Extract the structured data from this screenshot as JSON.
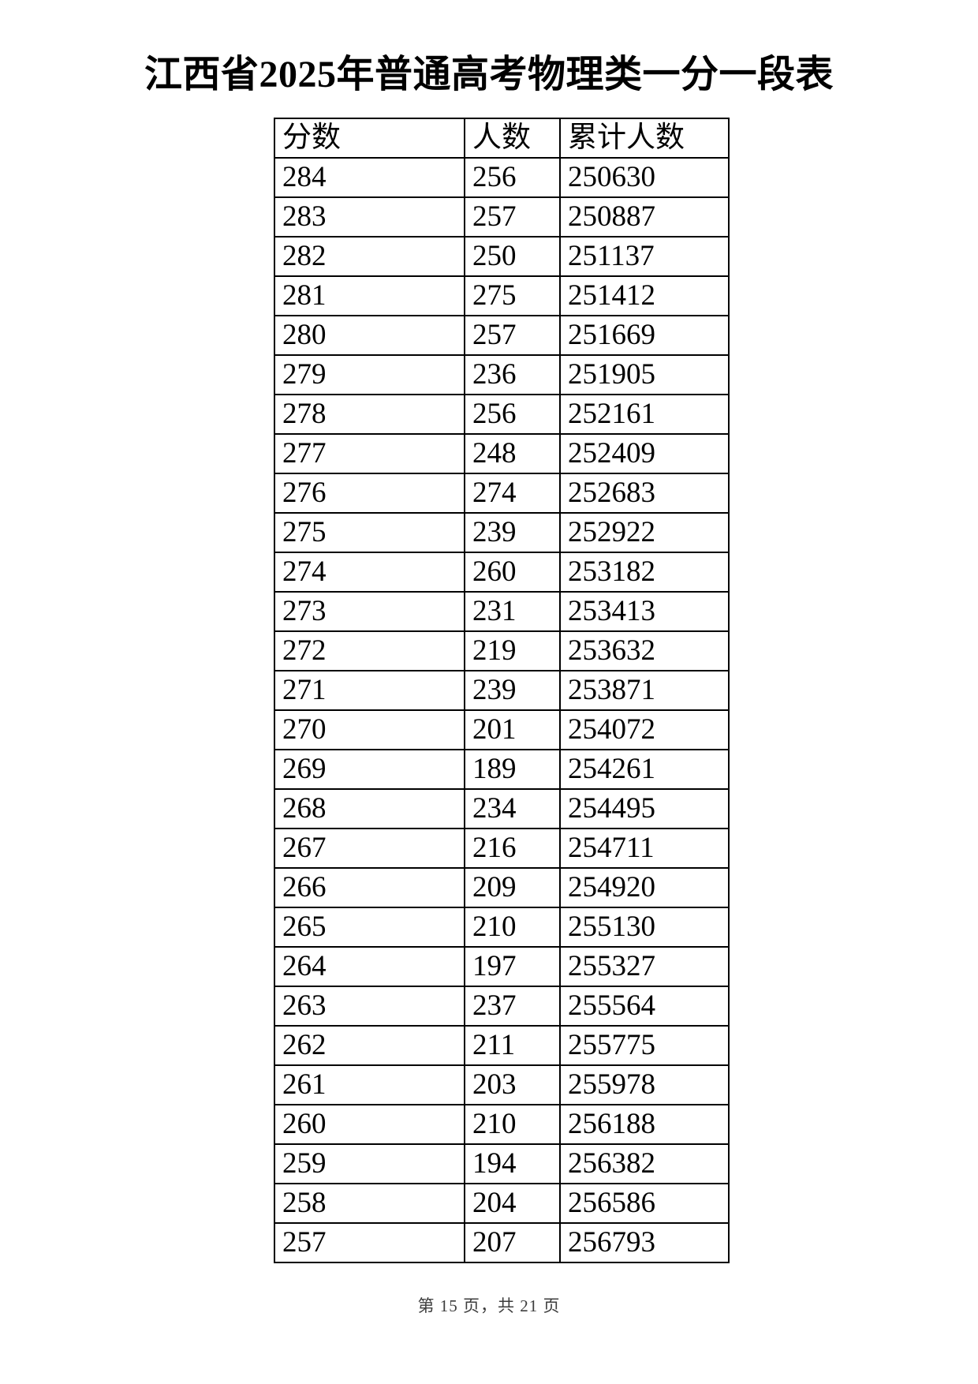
{
  "title": "江西省2025年普通高考物理类一分一段表",
  "table": {
    "headers": [
      "分数",
      "人数",
      "累计人数"
    ],
    "rows": [
      [
        "284",
        "256",
        "250630"
      ],
      [
        "283",
        "257",
        "250887"
      ],
      [
        "282",
        "250",
        "251137"
      ],
      [
        "281",
        "275",
        "251412"
      ],
      [
        "280",
        "257",
        "251669"
      ],
      [
        "279",
        "236",
        "251905"
      ],
      [
        "278",
        "256",
        "252161"
      ],
      [
        "277",
        "248",
        "252409"
      ],
      [
        "276",
        "274",
        "252683"
      ],
      [
        "275",
        "239",
        "252922"
      ],
      [
        "274",
        "260",
        "253182"
      ],
      [
        "273",
        "231",
        "253413"
      ],
      [
        "272",
        "219",
        "253632"
      ],
      [
        "271",
        "239",
        "253871"
      ],
      [
        "270",
        "201",
        "254072"
      ],
      [
        "269",
        "189",
        "254261"
      ],
      [
        "268",
        "234",
        "254495"
      ],
      [
        "267",
        "216",
        "254711"
      ],
      [
        "266",
        "209",
        "254920"
      ],
      [
        "265",
        "210",
        "255130"
      ],
      [
        "264",
        "197",
        "255327"
      ],
      [
        "263",
        "237",
        "255564"
      ],
      [
        "262",
        "211",
        "255775"
      ],
      [
        "261",
        "203",
        "255978"
      ],
      [
        "260",
        "210",
        "256188"
      ],
      [
        "259",
        "194",
        "256382"
      ],
      [
        "258",
        "204",
        "256586"
      ],
      [
        "257",
        "207",
        "256793"
      ]
    ]
  },
  "footer": {
    "text": "第 15 页，共 21 页"
  },
  "colors": {
    "background": "#ffffff",
    "text": "#000000",
    "border": "#000000",
    "footer_text": "#3d3d3d"
  }
}
